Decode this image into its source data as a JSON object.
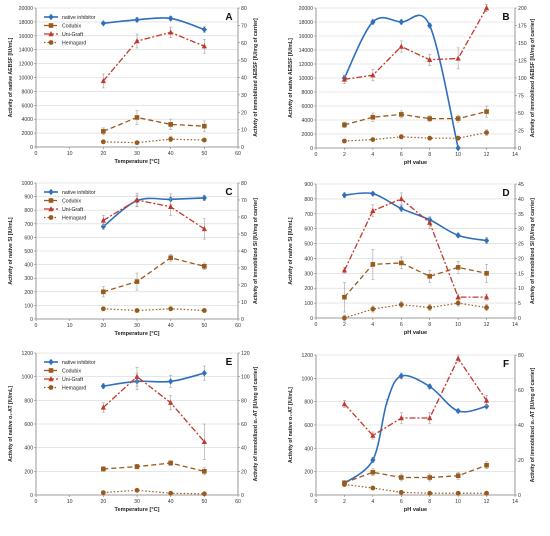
{
  "colors": {
    "native": "#2e6fbe",
    "codubix": "#9a5a1b",
    "unigraft": "#c0392b",
    "hemagard": "#9a5a1b",
    "errorbar": "#a0a0a0"
  },
  "chart_data": [
    {
      "type": "line",
      "panel_letter": "A",
      "xlabel": "Temperature [°C]",
      "ylabel": "Activity of native AEBSF [IU/mL]",
      "y2label": "Activity of immobilized AEBSF [IU/mg of carrier]",
      "xlim": [
        0,
        60
      ],
      "xticks": [
        0,
        10,
        20,
        30,
        40,
        50,
        60
      ],
      "ylim": [
        0,
        20000
      ],
      "yticks": [
        0,
        2000,
        4000,
        6000,
        8000,
        10000,
        12000,
        14000,
        16000,
        18000,
        20000
      ],
      "y2lim": [
        0,
        80
      ],
      "y2ticks": [
        0,
        10,
        20,
        30,
        40,
        50,
        60,
        70,
        80
      ],
      "legend": {
        "position": "top-left",
        "entries": [
          "native inhibitor",
          "Codubix",
          "Uni-Graft",
          "Hemagard"
        ]
      },
      "series": [
        {
          "name": "native inhibitor",
          "axis": "left",
          "x": [
            20,
            30,
            40,
            50
          ],
          "y": [
            17800,
            18300,
            18500,
            16900
          ],
          "err": [
            200,
            300,
            300,
            400
          ]
        },
        {
          "name": "Codubix",
          "axis": "right",
          "x": [
            20,
            30,
            40,
            50
          ],
          "y": [
            9,
            17,
            13,
            12
          ],
          "err": [
            2,
            4,
            3,
            3
          ]
        },
        {
          "name": "Uni-Graft",
          "axis": "right",
          "x": [
            20,
            30,
            40,
            50
          ],
          "y": [
            38,
            61,
            66,
            58
          ],
          "err": [
            4,
            4,
            3,
            4
          ]
        },
        {
          "name": "Hemagard",
          "axis": "right",
          "x": [
            20,
            30,
            40,
            50
          ],
          "y": [
            3,
            2.5,
            4.5,
            4
          ],
          "err": [
            1,
            1,
            1.5,
            1
          ]
        }
      ]
    },
    {
      "type": "line",
      "panel_letter": "B",
      "xlabel": "pH value",
      "ylabel": "Activity of native AEBSF [IU/mL]",
      "y2label": "Activity of immobilized AEBSF [IU/mg of carrier]",
      "xlim": [
        0,
        14
      ],
      "xticks": [
        0,
        2,
        4,
        6,
        8,
        10,
        12,
        14
      ],
      "ylim": [
        0,
        20000
      ],
      "yticks": [
        0,
        2000,
        4000,
        6000,
        8000,
        10000,
        12000,
        14000,
        16000,
        18000,
        20000
      ],
      "y2lim": [
        0,
        200
      ],
      "y2ticks": [
        0,
        25,
        50,
        75,
        100,
        125,
        150,
        175,
        200
      ],
      "series": [
        {
          "name": "native inhibitor",
          "axis": "left",
          "x": [
            2,
            4,
            6,
            8,
            10
          ],
          "y": [
            10000,
            18000,
            18000,
            17500,
            0
          ],
          "err": [
            300,
            300,
            300,
            300,
            0
          ]
        },
        {
          "name": "Codubix",
          "axis": "right",
          "x": [
            2,
            4,
            6,
            8,
            10,
            12
          ],
          "y": [
            33,
            44,
            48,
            42,
            42,
            52
          ],
          "err": [
            4,
            6,
            5,
            4,
            5,
            8
          ]
        },
        {
          "name": "Uni-Graft",
          "axis": "right",
          "x": [
            2,
            4,
            6,
            8,
            10,
            12
          ],
          "y": [
            98,
            104,
            145,
            126,
            128,
            200
          ],
          "err": [
            6,
            8,
            8,
            8,
            15,
            5
          ]
        },
        {
          "name": "Hemagard",
          "axis": "right",
          "x": [
            2,
            4,
            6,
            8,
            10,
            12
          ],
          "y": [
            10,
            12,
            16,
            14,
            14,
            22
          ],
          "err": [
            2,
            2,
            3,
            2,
            2,
            4
          ]
        }
      ]
    },
    {
      "type": "line",
      "panel_letter": "C",
      "xlabel": "Temperature [°C]",
      "ylabel": "Activity of native SI [IU/mL]",
      "y2label": "Activity of immobilized SI [IU/mg of carrier]",
      "xlim": [
        0,
        60
      ],
      "xticks": [
        0,
        10,
        20,
        30,
        40,
        50,
        60
      ],
      "ylim": [
        0,
        1000
      ],
      "yticks": [
        0,
        100,
        200,
        300,
        400,
        500,
        600,
        700,
        800,
        900,
        1000
      ],
      "y2lim": [
        0,
        80
      ],
      "y2ticks": [
        0,
        10,
        20,
        30,
        40,
        50,
        60,
        70,
        80
      ],
      "legend": {
        "position": "top-left",
        "entries": [
          "native inhibitor",
          "Codubix",
          "Uni-Graft",
          "Hemagard"
        ]
      },
      "series": [
        {
          "name": "native inhibitor",
          "axis": "left",
          "x": [
            20,
            30,
            40,
            50
          ],
          "y": [
            680,
            870,
            880,
            890
          ],
          "err": [
            20,
            40,
            40,
            20
          ]
        },
        {
          "name": "Codubix",
          "axis": "right",
          "x": [
            20,
            30,
            40,
            50
          ],
          "y": [
            16,
            22,
            36,
            31
          ],
          "err": [
            3,
            5,
            2,
            2
          ]
        },
        {
          "name": "Uni-Graft",
          "axis": "right",
          "x": [
            20,
            30,
            40,
            50
          ],
          "y": [
            58,
            70,
            66,
            53
          ],
          "err": [
            3,
            4,
            5,
            6
          ]
        },
        {
          "name": "Hemagard",
          "axis": "right",
          "x": [
            20,
            30,
            40,
            50
          ],
          "y": [
            6,
            5,
            6,
            5
          ],
          "err": [
            1,
            1,
            1,
            1
          ]
        }
      ]
    },
    {
      "type": "line",
      "panel_letter": "D",
      "xlabel": "pH value",
      "ylabel": "Activity of native SI [IU/mL]",
      "y2label": "Activity of immobilized SI [IU/mg of carrier]",
      "xlim": [
        0,
        14
      ],
      "xticks": [
        0,
        2,
        4,
        6,
        8,
        10,
        12,
        14
      ],
      "ylim": [
        0,
        900
      ],
      "yticks": [
        0,
        100,
        200,
        300,
        400,
        500,
        600,
        700,
        800,
        900
      ],
      "y2lim": [
        0,
        45
      ],
      "y2ticks": [
        0,
        5,
        10,
        15,
        20,
        25,
        30,
        35,
        40,
        45
      ],
      "series": [
        {
          "name": "native inhibitor",
          "axis": "left",
          "x": [
            2,
            4,
            6,
            8,
            10,
            12
          ],
          "y": [
            825,
            835,
            735,
            660,
            555,
            520
          ],
          "err": [
            15,
            10,
            20,
            15,
            15,
            20
          ]
        },
        {
          "name": "Codubix",
          "axis": "right",
          "x": [
            2,
            4,
            6,
            8,
            10,
            12
          ],
          "y": [
            7,
            18,
            18.5,
            14,
            17,
            15
          ],
          "err": [
            5,
            5,
            2,
            2,
            2,
            3
          ]
        },
        {
          "name": "Uni-Graft",
          "axis": "right",
          "x": [
            2,
            4,
            6,
            8,
            10,
            12
          ],
          "y": [
            16,
            36,
            40,
            32,
            7,
            7
          ],
          "err": [
            1,
            2,
            2,
            2,
            1,
            1
          ]
        },
        {
          "name": "Hemagard",
          "axis": "right",
          "x": [
            2,
            4,
            6,
            8,
            10,
            12
          ],
          "y": [
            0,
            3,
            4.5,
            3.5,
            5,
            3.5
          ],
          "err": [
            1,
            1,
            1,
            1,
            1,
            1
          ]
        }
      ]
    },
    {
      "type": "line",
      "panel_letter": "E",
      "xlabel": "Temperature [°C]",
      "ylabel": "Activity of native α₁-AT [IU/mL]",
      "y2label": "Activity of immobilized α₁-AT [IU/mg of carrier]",
      "xlim": [
        0,
        60
      ],
      "xticks": [
        0,
        10,
        20,
        30,
        40,
        50,
        60
      ],
      "ylim": [
        0,
        1200
      ],
      "yticks": [
        0,
        200,
        400,
        600,
        800,
        1000,
        1200
      ],
      "y2lim": [
        0,
        120
      ],
      "y2ticks": [
        0,
        20,
        40,
        60,
        80,
        100,
        120
      ],
      "legend": {
        "position": "top-left",
        "entries": [
          "native inhibitor",
          "Codubix",
          "Uni-Graft",
          "Hemagard"
        ]
      },
      "series": [
        {
          "name": "native inhibitor",
          "axis": "left",
          "x": [
            20,
            30,
            40,
            50
          ],
          "y": [
            920,
            960,
            960,
            1030
          ],
          "err": [
            20,
            70,
            50,
            60
          ]
        },
        {
          "name": "Codubix",
          "axis": "right",
          "x": [
            20,
            30,
            40,
            50
          ],
          "y": [
            22,
            24,
            27,
            20
          ],
          "err": [
            2,
            2,
            2,
            3
          ]
        },
        {
          "name": "Uni-Graft",
          "axis": "right",
          "x": [
            20,
            30,
            40,
            50
          ],
          "y": [
            74,
            100,
            78,
            45
          ],
          "err": [
            4,
            8,
            6,
            15
          ]
        },
        {
          "name": "Hemagard",
          "axis": "right",
          "x": [
            20,
            30,
            40,
            50
          ],
          "y": [
            2,
            4,
            1.5,
            1
          ],
          "err": [
            1,
            1,
            1,
            1
          ]
        }
      ]
    },
    {
      "type": "line",
      "panel_letter": "F",
      "xlabel": "pH value",
      "ylabel": "Activity of native α₁-AT [IU/mL]",
      "y2label": "Activity of immobilized α₁-AT [IU/mg of carrier]",
      "xlim": [
        0,
        14
      ],
      "xticks": [
        0,
        2,
        4,
        6,
        8,
        10,
        12,
        14
      ],
      "ylim": [
        0,
        1200
      ],
      "yticks": [
        0,
        200,
        400,
        600,
        800,
        1000,
        1200
      ],
      "y2lim": [
        0,
        80
      ],
      "y2ticks": [
        0,
        20,
        40,
        60,
        80
      ],
      "series": [
        {
          "name": "native inhibitor",
          "axis": "left",
          "x": [
            2,
            4,
            5,
            6,
            8,
            10,
            12
          ],
          "y": [
            100,
            300,
            800,
            1020,
            930,
            720,
            760
          ],
          "err": [
            20,
            20,
            20,
            25,
            20,
            15,
            15
          ]
        },
        {
          "name": "Codubix",
          "axis": "right",
          "x": [
            2,
            4,
            6,
            8,
            10,
            12
          ],
          "y": [
            7,
            13,
            10,
            10,
            11,
            17
          ],
          "err": [
            1,
            2,
            2,
            2,
            2,
            2
          ]
        },
        {
          "name": "Uni-Graft",
          "axis": "right",
          "x": [
            2,
            4,
            6,
            8,
            10,
            12
          ],
          "y": [
            52,
            34,
            44,
            44,
            78,
            54
          ],
          "err": [
            2,
            2,
            3,
            3,
            2,
            3
          ]
        },
        {
          "name": "Hemagard",
          "axis": "right",
          "x": [
            2,
            4,
            6,
            8,
            10,
            12
          ],
          "y": [
            6,
            4,
            1.5,
            1,
            1,
            1
          ],
          "err": [
            1,
            1,
            1,
            1,
            1,
            1
          ]
        }
      ]
    }
  ]
}
